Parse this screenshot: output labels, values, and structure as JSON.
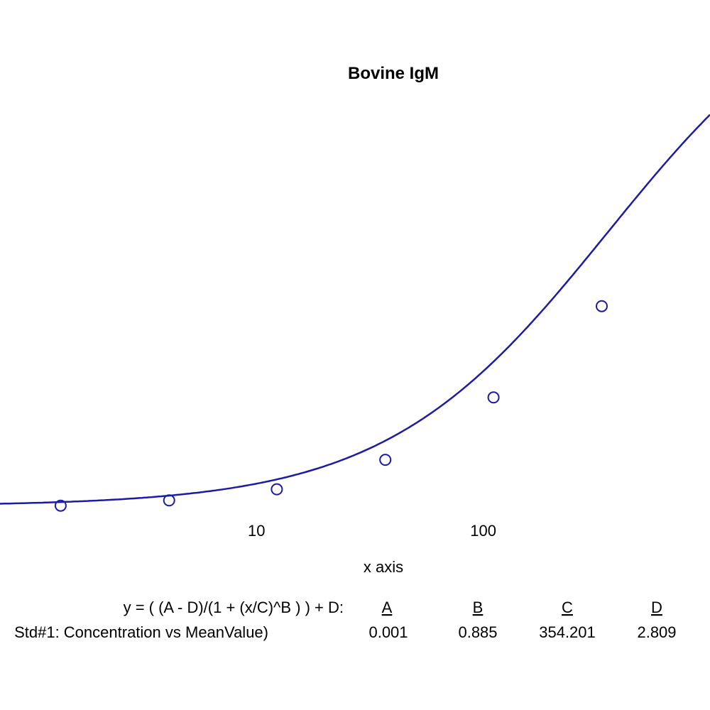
{
  "chart_data": {
    "type": "line",
    "title": "Bovine IgM",
    "xlabel": "x axis",
    "ylabel": "",
    "x_scale": "log",
    "xlim": [
      0.74,
      1000
    ],
    "ylim": [
      0,
      2.05
    ],
    "x_ticks": [
      {
        "value": 10,
        "label": "10"
      },
      {
        "value": 100,
        "label": "100"
      }
    ],
    "grid": false,
    "series": [
      {
        "name": "Std#1: Concentration vs MeanValue)",
        "points": [
          {
            "x": 1.37,
            "y": 0.003
          },
          {
            "x": 4.12,
            "y": 0.03
          },
          {
            "x": 12.3,
            "y": 0.087
          },
          {
            "x": 37.0,
            "y": 0.238
          },
          {
            "x": 111,
            "y": 0.558
          },
          {
            "x": 333,
            "y": 1.026
          }
        ],
        "fit": {
          "equation": "y = ( (A - D)/(1 + (x/C)^B ) ) + D:",
          "A": 0.001,
          "B": 0.885,
          "C": 354.201,
          "D": 2.809
        }
      }
    ],
    "legend": {
      "equation": "y = ( (A - D)/(1 + (x/C)^B ) ) + D:",
      "headers": [
        "A",
        "B",
        "C",
        "D"
      ],
      "row_label": "Std#1: Concentration vs MeanValue)",
      "values": [
        "0.001",
        "0.885",
        "354.201",
        "2.809"
      ]
    },
    "colors": {
      "series": "#1b1ba8"
    }
  }
}
